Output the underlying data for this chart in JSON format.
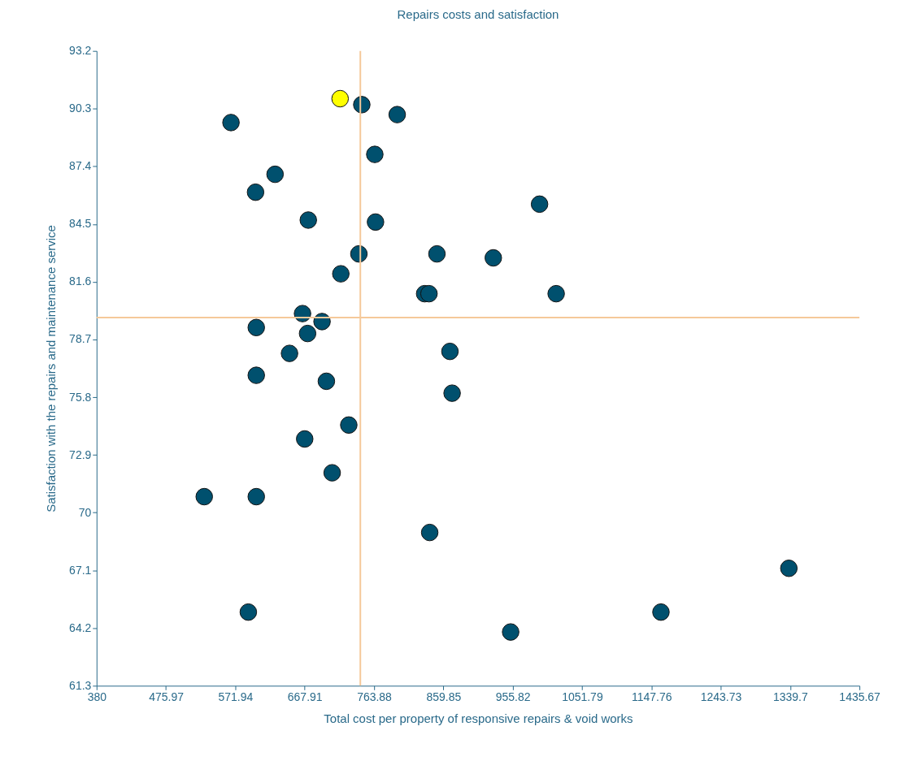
{
  "chart_data": {
    "type": "scatter",
    "title": "Repairs costs and satisfaction",
    "xlabel": "Total cost per property of responsive repairs & void works",
    "ylabel": "Satisfaction with the repairs and maintenance service",
    "xlim": [
      380,
      1435.67
    ],
    "xticks": [
      380,
      475.97,
      571.94,
      667.91,
      763.88,
      859.85,
      955.82,
      1051.79,
      1147.76,
      1243.73,
      1339.7,
      1435.67
    ],
    "ylim": [
      61.3,
      93.2
    ],
    "yticks": [
      61.3,
      64.2,
      67.1,
      70,
      72.9,
      75.8,
      78.7,
      81.6,
      84.5,
      87.4,
      90.3,
      93.2
    ],
    "grid": false,
    "marker": "circle",
    "series": [
      {
        "color": "#00506e",
        "x": [
          747,
          796,
          566,
          765,
          627,
          600,
          993,
          673,
          766,
          743,
          851,
          929,
          718,
          834,
          840,
          1016,
          665,
          692,
          601,
          672,
          869,
          647,
          601,
          698,
          872,
          729,
          668,
          706,
          529,
          601,
          841,
          1338,
          590,
          1161,
          953
        ],
        "values": [
          90.5,
          90.0,
          89.6,
          88.0,
          87.0,
          86.1,
          85.5,
          84.7,
          84.6,
          83.0,
          83.0,
          82.8,
          82.0,
          81.0,
          81.0,
          81.0,
          80.0,
          79.6,
          79.3,
          79.0,
          78.1,
          78.0,
          76.9,
          76.6,
          76.0,
          74.4,
          73.7,
          72.0,
          70.8,
          70.8,
          69.0,
          67.2,
          65.0,
          65.0,
          64.0
        ]
      },
      {
        "color": "#ffff00",
        "x": [
          717
        ],
        "values": [
          90.8
        ]
      }
    ],
    "ref_lines": [
      {
        "axis": "x",
        "value": 745,
        "color": "#f5c99a"
      },
      {
        "axis": "y",
        "value": 79.8,
        "color": "#f5c99a"
      }
    ]
  }
}
